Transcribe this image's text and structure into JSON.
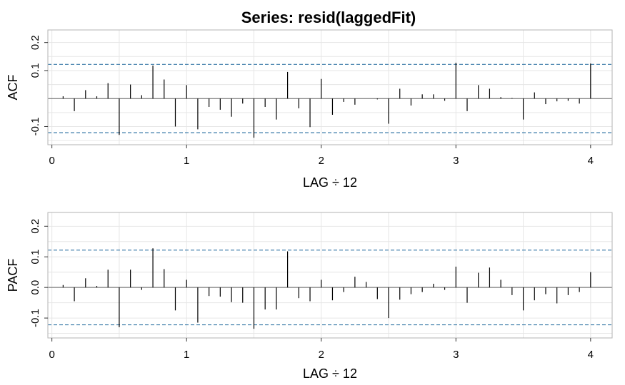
{
  "chart_data": {
    "title": "Series:  resid(laggedFit)",
    "type": "bar",
    "lag_step": 0.08333333,
    "xlabel": "LAG ÷ 12",
    "xlim": [
      -0.03,
      4.16
    ],
    "xticks": [
      0,
      1,
      2,
      3,
      4
    ],
    "xtick_labels": [
      "0",
      "1",
      "2",
      "3",
      "4"
    ],
    "grid": true,
    "panels": [
      {
        "name": "ACF",
        "ylabel": "ACF",
        "ylim": [
          -0.165,
          0.245
        ],
        "yticks": [
          -0.1,
          0.1,
          0.2
        ],
        "ytick_labels": [
          "-0.1",
          "0.1",
          "0.2"
        ],
        "ci": 0.122,
        "values": [
          0.008,
          -0.045,
          0.03,
          0.008,
          0.055,
          -0.13,
          0.05,
          0.012,
          0.118,
          0.068,
          -0.1,
          0.048,
          -0.11,
          -0.03,
          -0.04,
          -0.065,
          -0.018,
          -0.14,
          -0.03,
          -0.075,
          0.095,
          -0.035,
          -0.102,
          0.07,
          -0.058,
          -0.012,
          -0.022,
          0.0,
          -0.003,
          -0.09,
          0.035,
          -0.025,
          0.015,
          0.015,
          -0.008,
          0.128,
          -0.045,
          0.048,
          0.035,
          0.005,
          0.002,
          -0.075,
          0.022,
          -0.02,
          -0.01,
          -0.008,
          -0.018,
          0.125
        ]
      },
      {
        "name": "PACF",
        "ylabel": "PACF",
        "ylim": [
          -0.165,
          0.245
        ],
        "yticks": [
          -0.1,
          0.0,
          0.1,
          0.2
        ],
        "ytick_labels": [
          "-0.1",
          "0.0",
          "0.1",
          "0.2"
        ],
        "ci": 0.122,
        "values": [
          0.008,
          -0.045,
          0.03,
          0.005,
          0.058,
          -0.13,
          0.058,
          -0.008,
          0.128,
          0.06,
          -0.075,
          0.025,
          -0.115,
          -0.028,
          -0.03,
          -0.048,
          -0.05,
          -0.135,
          -0.072,
          -0.072,
          0.118,
          -0.035,
          -0.045,
          0.025,
          -0.042,
          -0.015,
          0.035,
          0.018,
          -0.038,
          -0.1,
          -0.04,
          -0.022,
          -0.015,
          0.012,
          -0.008,
          0.068,
          -0.05,
          0.048,
          0.065,
          0.025,
          -0.025,
          -0.075,
          -0.042,
          -0.022,
          -0.052,
          -0.025,
          -0.015,
          0.05
        ]
      }
    ]
  }
}
